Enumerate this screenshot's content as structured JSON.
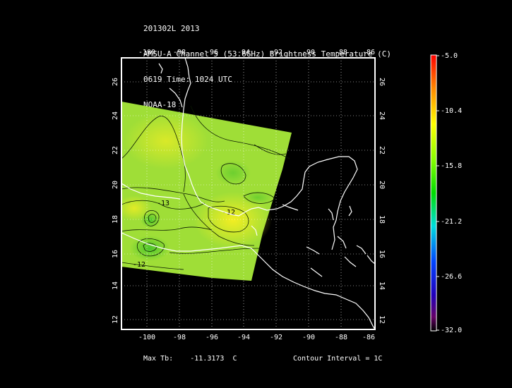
{
  "header": {
    "line1": "201302L 2013",
    "line2": "AMSU-A Channel 5 (53.6GHz) Brightness Temperature (C)",
    "line3": "0619 Time: 1024 UTC",
    "line4": "NOAA-18"
  },
  "axes": {
    "lon_labels": [
      "-100",
      "-98",
      "-96",
      "-94",
      "-92",
      "-90",
      "-88",
      "-86"
    ],
    "lat_labels": [
      "26",
      "24",
      "22",
      "20",
      "18",
      "16",
      "14",
      "12"
    ]
  },
  "colorbar": {
    "labels": [
      "-5.0",
      "-10.4",
      "-15.8",
      "-21.2",
      "-26.6",
      "-32.0"
    ],
    "colors": [
      "#ff0000",
      "#ff8800",
      "#ffff00",
      "#88ff00",
      "#00dd00",
      "#00dddd",
      "#0044ff",
      "#2200bb",
      "#660066",
      "#000000"
    ]
  },
  "contours": {
    "labels": [
      "-13",
      "-12",
      "-12"
    ]
  },
  "footer": {
    "max_tb_label": "Max Tb:",
    "max_tb_value": "-11.3173",
    "max_tb_unit": "C",
    "contour_interval": "Contour Interval = 1C"
  }
}
